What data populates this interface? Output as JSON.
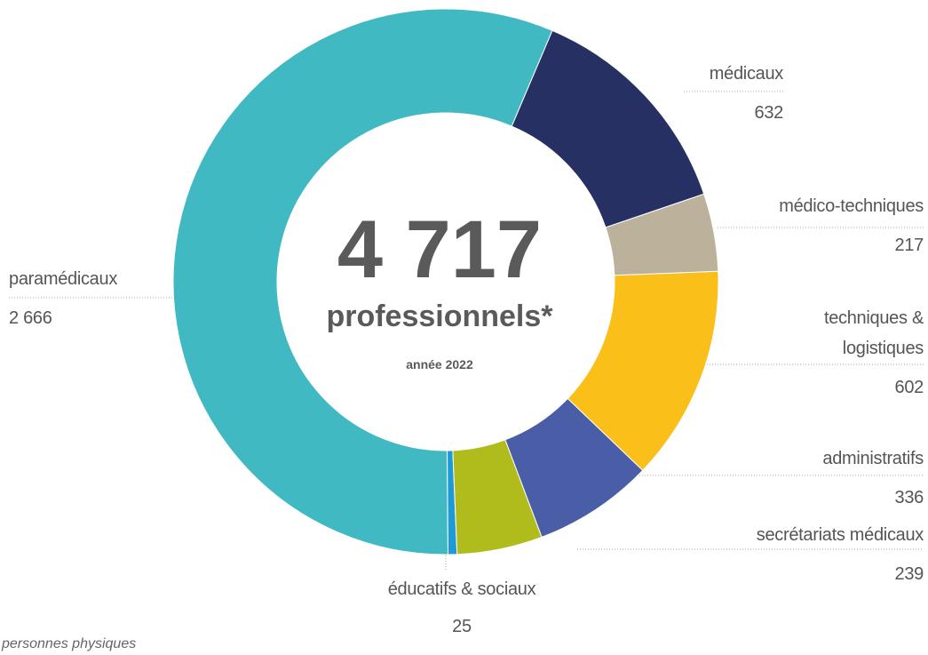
{
  "chart_data": {
    "type": "donut",
    "total": "4 717",
    "subtitle": "professionnels*",
    "note": "année 2022",
    "footnote": "personnes physiques",
    "categories": [
      "médicaux",
      "médico-techniques",
      "techniques & logistiques",
      "administratifs",
      "secrétariats médicaux",
      "éducatifs & sociaux",
      "paramédicaux"
    ],
    "values": [
      632,
      217,
      602,
      336,
      239,
      25,
      2666
    ],
    "value_labels": [
      "632",
      "217",
      "602",
      "336",
      "239",
      "25",
      "2 666"
    ],
    "colors": [
      "#263062",
      "#bcb29c",
      "#fbbf1a",
      "#4a5ea8",
      "#b0bb1c",
      "#1e9bd7",
      "#40b9c2"
    ]
  }
}
